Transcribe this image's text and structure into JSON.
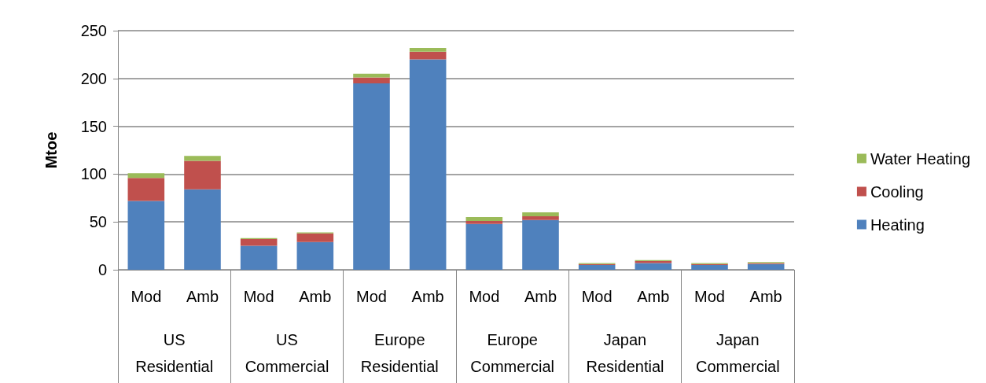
{
  "chart_data": {
    "type": "bar",
    "stacked": true,
    "ylabel": "Mtoe",
    "categories": [
      "Mod",
      "Amb",
      "Mod",
      "Amb",
      "Mod",
      "Amb",
      "Mod",
      "Amb",
      "Mod",
      "Amb",
      "Mod",
      "Amb"
    ],
    "annotations": [
      "US\nResidential",
      "US\nCommercial",
      "Europe\nResidential",
      "Europe\nCommercial",
      "Japan\nResidential",
      "Japan\nCommercial"
    ],
    "series": [
      {
        "name": "Heating",
        "color": "#4f81bd",
        "values": [
          72,
          84,
          25,
          29,
          195,
          220,
          48,
          52,
          5,
          7,
          5,
          6
        ]
      },
      {
        "name": "Cooling",
        "color": "#c0504d",
        "values": [
          24,
          30,
          7,
          9,
          6,
          8,
          3,
          4,
          1,
          2,
          1,
          1
        ]
      },
      {
        "name": "Water Heating",
        "color": "#9bbb59",
        "values": [
          5,
          5,
          1,
          1,
          4,
          4,
          4,
          4,
          1,
          1,
          1,
          1
        ]
      }
    ],
    "ylim": [
      0,
      250
    ],
    "yticks": [
      0,
      50,
      100,
      150,
      200,
      250
    ],
    "grid": "y",
    "legend": "right"
  }
}
